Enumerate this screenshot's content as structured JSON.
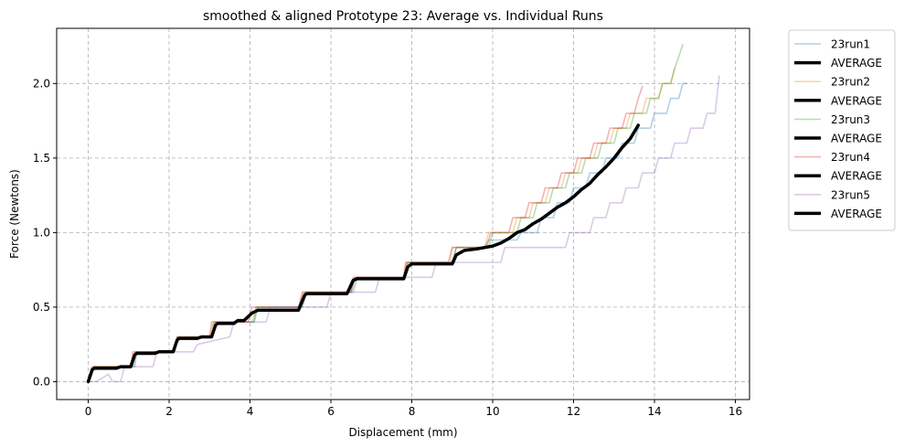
{
  "chart_data": {
    "type": "line",
    "title": "smoothed & aligned Prototype 23: Average vs. Individual Runs",
    "xlabel": "Displacement (mm)",
    "ylabel": "Force (Newtons)",
    "xlim": [
      -0.78,
      16.35
    ],
    "ylim": [
      -0.12,
      2.37
    ],
    "xticks": [
      0,
      2,
      4,
      6,
      8,
      10,
      12,
      14,
      16
    ],
    "yticks": [
      0.0,
      0.5,
      1.0,
      1.5,
      2.0
    ],
    "xtick_labels": [
      "0",
      "2",
      "4",
      "6",
      "8",
      "10",
      "12",
      "14",
      "16"
    ],
    "ytick_labels": [
      "0.0",
      "0.5",
      "1.0",
      "1.5",
      "2.0"
    ],
    "grid": true,
    "legend_position": "outside-right",
    "legend": [
      "23run1",
      "AVERAGE",
      "23run2",
      "AVERAGE",
      "23run3",
      "AVERAGE",
      "23run4",
      "AVERAGE",
      "23run5",
      "AVERAGE"
    ],
    "series": [
      {
        "name": "23run1",
        "color": "#1f77b4",
        "opacity": 0.35,
        "x": [
          0,
          0.1,
          0.15,
          1.15,
          1.2,
          2.1,
          2.2,
          3.05,
          3.15,
          4.1,
          4.2,
          5.3,
          5.4,
          6.55,
          6.65,
          7.8,
          7.9,
          9.0,
          9.1,
          9.8,
          9.9,
          10.6,
          10.7,
          11.1,
          11.2,
          11.5,
          11.6,
          11.9,
          12.0,
          12.3,
          12.4,
          12.7,
          12.8,
          13.1,
          13.2,
          13.5,
          13.6,
          13.9,
          14.0,
          14.3,
          14.4,
          14.6,
          14.7,
          14.8
        ],
        "y": [
          0.0,
          0.09,
          0.1,
          0.1,
          0.2,
          0.2,
          0.3,
          0.3,
          0.4,
          0.4,
          0.5,
          0.5,
          0.6,
          0.6,
          0.7,
          0.7,
          0.8,
          0.8,
          0.9,
          0.9,
          0.95,
          0.95,
          1.0,
          1.0,
          1.1,
          1.1,
          1.2,
          1.2,
          1.3,
          1.3,
          1.4,
          1.4,
          1.5,
          1.5,
          1.6,
          1.6,
          1.7,
          1.7,
          1.8,
          1.8,
          1.9,
          1.9,
          2.0,
          2.0
        ]
      },
      {
        "name": "23run2",
        "color": "#ff7f0e",
        "opacity": 0.35,
        "x": [
          0,
          0.08,
          0.12,
          1.1,
          1.15,
          2.15,
          2.2,
          3.0,
          3.1,
          4.05,
          4.15,
          5.2,
          5.3,
          6.5,
          6.6,
          7.8,
          7.85,
          8.95,
          9.0,
          9.8,
          9.9,
          10.5,
          10.6,
          10.9,
          11.0,
          11.3,
          11.4,
          11.7,
          11.8,
          12.1,
          12.2,
          12.5,
          12.6,
          12.9,
          13.0,
          13.3,
          13.4,
          13.7,
          13.8,
          14.1,
          14.2,
          14.4,
          14.5
        ],
        "y": [
          0.0,
          0.09,
          0.1,
          0.1,
          0.2,
          0.2,
          0.3,
          0.3,
          0.4,
          0.4,
          0.5,
          0.5,
          0.6,
          0.6,
          0.7,
          0.7,
          0.8,
          0.8,
          0.9,
          0.9,
          1.0,
          1.0,
          1.1,
          1.1,
          1.2,
          1.2,
          1.3,
          1.3,
          1.4,
          1.4,
          1.5,
          1.5,
          1.6,
          1.6,
          1.7,
          1.7,
          1.8,
          1.8,
          1.9,
          1.9,
          2.0,
          2.0,
          2.1
        ]
      },
      {
        "name": "23run3",
        "color": "#2ca02c",
        "opacity": 0.35,
        "x": [
          0,
          0.1,
          0.15,
          1.1,
          1.2,
          2.1,
          2.2,
          3.05,
          3.1,
          4.1,
          4.15,
          5.25,
          5.35,
          6.5,
          6.6,
          7.8,
          7.9,
          9.0,
          9.1,
          9.9,
          10.0,
          10.6,
          10.7,
          11.0,
          11.1,
          11.4,
          11.5,
          11.8,
          11.9,
          12.2,
          12.3,
          12.6,
          12.7,
          13.0,
          13.1,
          13.4,
          13.5,
          13.8,
          13.9,
          14.1,
          14.2,
          14.4,
          14.5,
          14.7
        ],
        "y": [
          0.0,
          0.09,
          0.1,
          0.1,
          0.2,
          0.2,
          0.3,
          0.3,
          0.4,
          0.4,
          0.5,
          0.5,
          0.6,
          0.6,
          0.7,
          0.7,
          0.8,
          0.8,
          0.9,
          0.9,
          1.0,
          1.0,
          1.1,
          1.1,
          1.2,
          1.2,
          1.3,
          1.3,
          1.4,
          1.4,
          1.5,
          1.5,
          1.6,
          1.6,
          1.7,
          1.7,
          1.8,
          1.8,
          1.9,
          1.9,
          2.0,
          2.0,
          2.1,
          2.26
        ]
      },
      {
        "name": "23run4",
        "color": "#d62728",
        "opacity": 0.35,
        "x": [
          0,
          0.08,
          0.12,
          1.05,
          1.1,
          2.1,
          2.2,
          3.0,
          3.05,
          3.95,
          4.05,
          5.2,
          5.3,
          6.5,
          6.55,
          7.8,
          7.85,
          8.9,
          9.0,
          9.85,
          9.95,
          10.4,
          10.5,
          10.8,
          10.9,
          11.2,
          11.3,
          11.6,
          11.7,
          12.0,
          12.1,
          12.4,
          12.5,
          12.8,
          12.9,
          13.2,
          13.3,
          13.5,
          13.6,
          13.7
        ],
        "y": [
          0.0,
          0.09,
          0.1,
          0.1,
          0.2,
          0.2,
          0.3,
          0.3,
          0.4,
          0.4,
          0.5,
          0.5,
          0.6,
          0.6,
          0.7,
          0.7,
          0.8,
          0.8,
          0.9,
          0.9,
          1.0,
          1.0,
          1.1,
          1.1,
          1.2,
          1.2,
          1.3,
          1.3,
          1.4,
          1.4,
          1.5,
          1.5,
          1.6,
          1.6,
          1.7,
          1.7,
          1.8,
          1.8,
          1.9,
          1.98
        ]
      },
      {
        "name": "23run5",
        "color": "#9467bd",
        "opacity": 0.35,
        "x": [
          0,
          0.2,
          0.5,
          0.6,
          0.8,
          0.9,
          1.6,
          1.7,
          2.6,
          2.7,
          3.5,
          3.6,
          4.4,
          4.5,
          5.9,
          6.0,
          7.1,
          7.2,
          8.5,
          8.6,
          10.2,
          10.3,
          11.8,
          11.9,
          12.4,
          12.5,
          12.8,
          12.9,
          13.2,
          13.3,
          13.6,
          13.7,
          14.0,
          14.1,
          14.4,
          14.5,
          14.8,
          14.9,
          15.2,
          15.3,
          15.5,
          15.6
        ],
        "y": [
          0.0,
          0.0,
          0.05,
          0.0,
          0.0,
          0.1,
          0.1,
          0.2,
          0.2,
          0.25,
          0.3,
          0.4,
          0.4,
          0.5,
          0.5,
          0.6,
          0.6,
          0.7,
          0.7,
          0.8,
          0.8,
          0.9,
          0.9,
          1.0,
          1.0,
          1.1,
          1.1,
          1.2,
          1.2,
          1.3,
          1.3,
          1.4,
          1.4,
          1.5,
          1.5,
          1.6,
          1.6,
          1.7,
          1.7,
          1.8,
          1.8,
          2.05
        ]
      },
      {
        "name": "AVERAGE",
        "color": "#000000",
        "opacity": 1,
        "x": [
          0,
          0.1,
          0.15,
          0.7,
          0.8,
          1.05,
          1.15,
          1.2,
          1.65,
          1.75,
          2.1,
          2.2,
          2.25,
          2.7,
          2.8,
          3.05,
          3.15,
          3.2,
          3.6,
          3.7,
          3.85,
          4.05,
          4.2,
          5.2,
          5.35,
          5.4,
          6.4,
          6.55,
          6.65,
          7.8,
          7.9,
          8.0,
          9.0,
          9.1,
          9.3,
          9.6,
          10.0,
          10.2,
          10.4,
          10.6,
          10.8,
          11.0,
          11.2,
          11.4,
          11.6,
          11.8,
          12.0,
          12.2,
          12.4,
          12.6,
          12.8,
          13.0,
          13.2,
          13.4,
          13.6
        ],
        "y": [
          0.0,
          0.08,
          0.09,
          0.09,
          0.1,
          0.1,
          0.18,
          0.19,
          0.19,
          0.2,
          0.2,
          0.28,
          0.29,
          0.29,
          0.3,
          0.3,
          0.38,
          0.39,
          0.39,
          0.41,
          0.41,
          0.46,
          0.48,
          0.48,
          0.58,
          0.59,
          0.59,
          0.68,
          0.69,
          0.69,
          0.77,
          0.79,
          0.79,
          0.85,
          0.88,
          0.89,
          0.91,
          0.93,
          0.96,
          1.0,
          1.02,
          1.06,
          1.09,
          1.13,
          1.17,
          1.2,
          1.24,
          1.29,
          1.33,
          1.39,
          1.44,
          1.5,
          1.57,
          1.63,
          1.72
        ]
      }
    ],
    "legend_colors": [
      "#1f77b4",
      "#000000",
      "#ff7f0e",
      "#000000",
      "#2ca02c",
      "#000000",
      "#d62728",
      "#000000",
      "#9467bd",
      "#000000"
    ]
  }
}
